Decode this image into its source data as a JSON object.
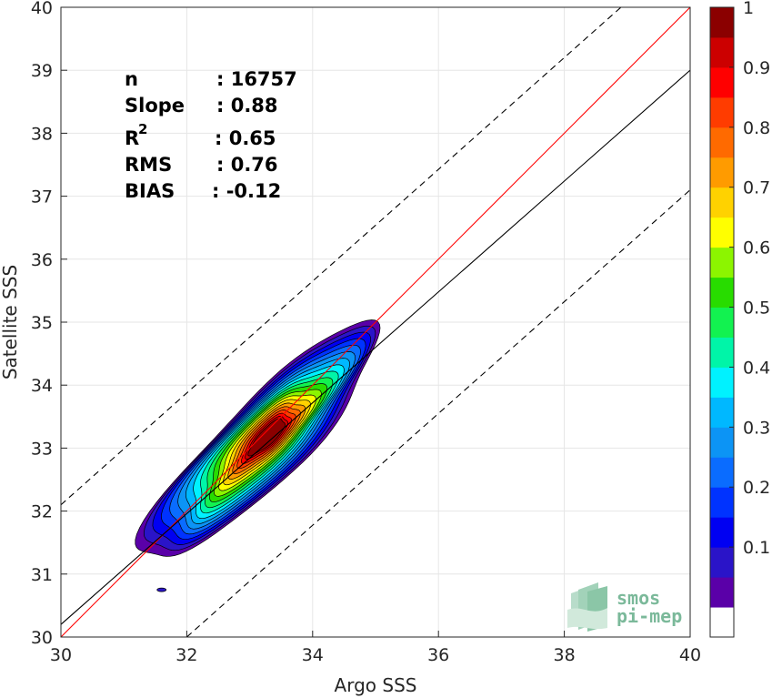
{
  "chart_data": {
    "type": "density-contour",
    "xlabel": "Argo SSS",
    "ylabel": "Satellite SSS",
    "xlim": [
      30,
      40
    ],
    "ylim": [
      30,
      40
    ],
    "xticks": [
      "30",
      "32",
      "34",
      "36",
      "38",
      "40"
    ],
    "yticks": [
      "30",
      "31",
      "32",
      "33",
      "34",
      "35",
      "36",
      "37",
      "38",
      "39",
      "40"
    ],
    "grid": true,
    "stats": [
      {
        "key": "n",
        "value": ": 16757"
      },
      {
        "key": "Slope",
        "value": ": 0.88"
      },
      {
        "key": "R",
        "sup": "2",
        "value": ": 0.65"
      },
      {
        "key": "RMS",
        "value": ": 0.76"
      },
      {
        "key": "BIAS",
        "value": ": -0.12"
      }
    ],
    "lines": [
      {
        "kind": "one-to-one",
        "color": "#ff0000",
        "style": "solid",
        "x": [
          30,
          40
        ],
        "y": [
          30,
          40
        ]
      },
      {
        "kind": "regression",
        "color": "#000000",
        "style": "solid",
        "x": [
          30,
          40
        ],
        "y": [
          30.2,
          39.0
        ]
      },
      {
        "kind": "upper-bound",
        "color": "#000000",
        "style": "dashed",
        "x": [
          30,
          38.9
        ],
        "y": [
          32.1,
          40
        ]
      },
      {
        "kind": "lower-bound",
        "color": "#000000",
        "style": "dashed",
        "x": [
          32.0,
          40
        ],
        "y": [
          30,
          37.1
        ]
      }
    ],
    "density_center": {
      "x": 33.3,
      "y": 33.2
    },
    "contour_levels": [
      0.05,
      0.1,
      0.15,
      0.2,
      0.25,
      0.3,
      0.35,
      0.4,
      0.45,
      0.5,
      0.55,
      0.6,
      0.65,
      0.7,
      0.75,
      0.8,
      0.85,
      0.9,
      0.95,
      1.0
    ],
    "colorbar": {
      "ticks": [
        "0.1",
        "0.2",
        "0.3",
        "0.4",
        "0.5",
        "0.6",
        "0.7",
        "0.8",
        "0.9",
        "1"
      ],
      "tick_values": [
        0.1,
        0.2,
        0.3,
        0.4,
        0.5,
        0.6,
        0.7,
        0.8,
        0.9,
        1.0
      ],
      "colors": [
        "#ffffff",
        "#5a00a8",
        "#2a14c8",
        "#0000f2",
        "#0033ff",
        "#0a6cff",
        "#0c94f5",
        "#00b8ff",
        "#00f2ff",
        "#00f5a8",
        "#12f250",
        "#28dc00",
        "#8cf500",
        "#ffff00",
        "#ffd200",
        "#ff9b00",
        "#ff6a00",
        "#ff3c00",
        "#ff0000",
        "#cc0000",
        "#8b0000"
      ]
    }
  },
  "logo": {
    "line1": "smos",
    "line2": "pi-mep"
  }
}
